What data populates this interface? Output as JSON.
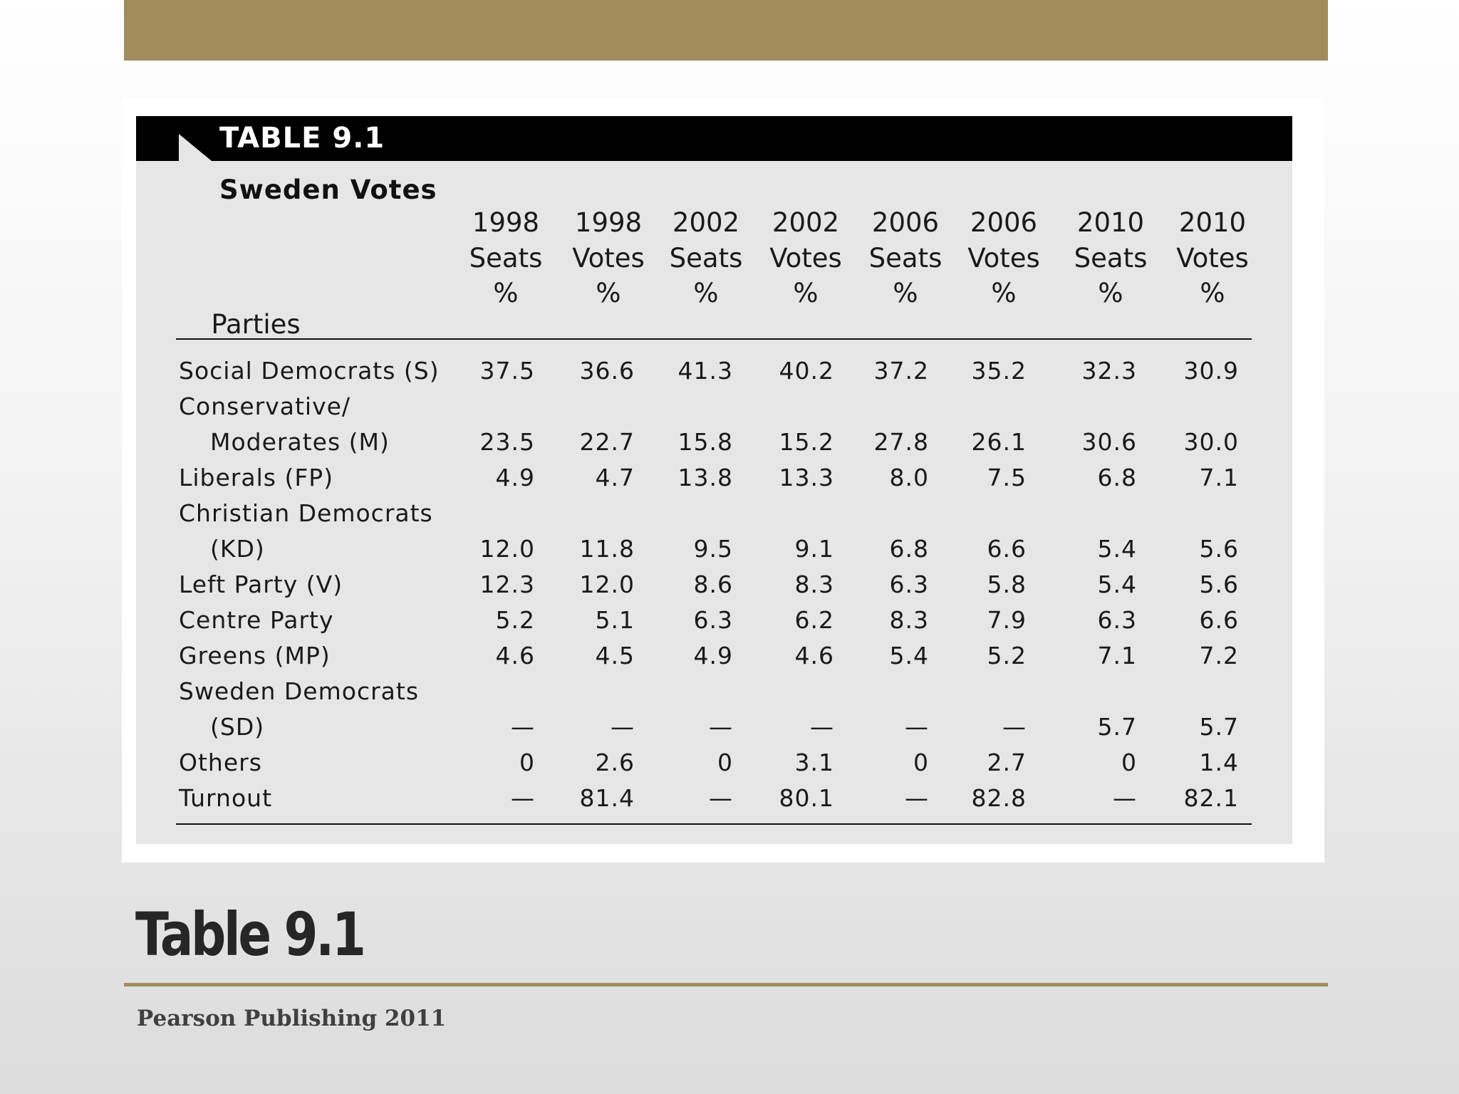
{
  "slide": {
    "title": "Table 9.1",
    "credit": "Pearson Publishing 2011"
  },
  "table": {
    "number": "TABLE 9.1",
    "title": "Sweden Votes",
    "parties_header": "Parties",
    "columns": [
      {
        "year": "1998",
        "kind": "Seats",
        "unit": "%"
      },
      {
        "year": "1998",
        "kind": "Votes",
        "unit": "%"
      },
      {
        "year": "2002",
        "kind": "Seats",
        "unit": "%"
      },
      {
        "year": "2002",
        "kind": "Votes",
        "unit": "%"
      },
      {
        "year": "2006",
        "kind": "Seats",
        "unit": "%"
      },
      {
        "year": "2006",
        "kind": "Votes",
        "unit": "%"
      },
      {
        "year": "2010",
        "kind": "Seats",
        "unit": "%"
      },
      {
        "year": "2010",
        "kind": "Votes",
        "unit": "%"
      }
    ],
    "rows": [
      {
        "party": [
          "Social Democrats (S)"
        ],
        "values": [
          "37.5",
          "36.6",
          "41.3",
          "40.2",
          "37.2",
          "35.2",
          "32.3",
          "30.9"
        ]
      },
      {
        "party": [
          "Conservative/",
          "Moderates (M)"
        ],
        "values": [
          "23.5",
          "22.7",
          "15.8",
          "15.2",
          "27.8",
          "26.1",
          "30.6",
          "30.0"
        ]
      },
      {
        "party": [
          "Liberals (FP)"
        ],
        "values": [
          "4.9",
          "4.7",
          "13.8",
          "13.3",
          "8.0",
          "7.5",
          "6.8",
          "7.1"
        ]
      },
      {
        "party": [
          "Christian Democrats",
          "(KD)"
        ],
        "values": [
          "12.0",
          "11.8",
          "9.5",
          "9.1",
          "6.8",
          "6.6",
          "5.4",
          "5.6"
        ]
      },
      {
        "party": [
          "Left Party (V)"
        ],
        "values": [
          "12.3",
          "12.0",
          "8.6",
          "8.3",
          "6.3",
          "5.8",
          "5.4",
          "5.6"
        ]
      },
      {
        "party": [
          "Centre Party"
        ],
        "values": [
          "5.2",
          "5.1",
          "6.3",
          "6.2",
          "8.3",
          "7.9",
          "6.3",
          "6.6"
        ]
      },
      {
        "party": [
          "Greens (MP)"
        ],
        "values": [
          "4.6",
          "4.5",
          "4.9",
          "4.6",
          "5.4",
          "5.2",
          "7.1",
          "7.2"
        ]
      },
      {
        "party": [
          "Sweden Democrats",
          "(SD)"
        ],
        "values": [
          "—",
          "—",
          "—",
          "—",
          "—",
          "—",
          "5.7",
          "5.7"
        ]
      },
      {
        "party": [
          "Others"
        ],
        "values": [
          "0",
          "2.6",
          "0",
          "3.1",
          "0",
          "2.7",
          "0",
          "1.4"
        ]
      },
      {
        "party": [
          "Turnout"
        ],
        "values": [
          "—",
          "81.4",
          "—",
          "80.1",
          "—",
          "82.8",
          "—",
          "82.1"
        ]
      }
    ]
  }
}
